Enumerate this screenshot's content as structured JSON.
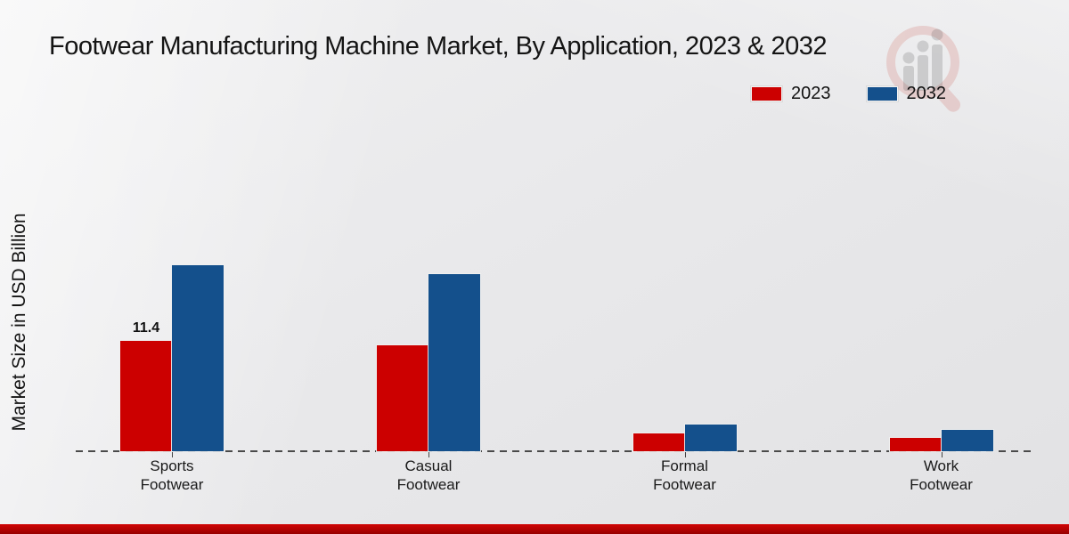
{
  "page": {
    "title": "Footwear Manufacturing Machine Market, By Application, 2023 & 2032",
    "y_axis_label": "Market Size in USD Billion",
    "footer_accent_color": "#b30202",
    "watermark_icon": "magnifier-bar-chart-logo"
  },
  "legend": {
    "items": [
      {
        "label": "2023",
        "color": "#cc0000"
      },
      {
        "label": "2032",
        "color": "#14508c"
      }
    ]
  },
  "chart_data": {
    "type": "bar",
    "title": "Footwear Manufacturing Machine Market, By Application, 2023 & 2032",
    "xlabel": "",
    "ylabel": "Market Size in USD Billion",
    "categories": [
      "Sports Footwear",
      "Casual Footwear",
      "Formal Footwear",
      "Work Footwear"
    ],
    "series": [
      {
        "name": "2023",
        "color": "#cc0000",
        "values": [
          11.4,
          10.9,
          1.8,
          1.4
        ]
      },
      {
        "name": "2032",
        "color": "#14508c",
        "values": [
          19.2,
          18.3,
          2.8,
          2.2
        ]
      }
    ],
    "data_labels": [
      {
        "series": "2023",
        "category": "Sports Footwear",
        "text": "11.4"
      }
    ],
    "ylim": [
      0,
      22
    ],
    "grid": false,
    "baseline_style": "dashed",
    "legend_position": "top-right"
  }
}
